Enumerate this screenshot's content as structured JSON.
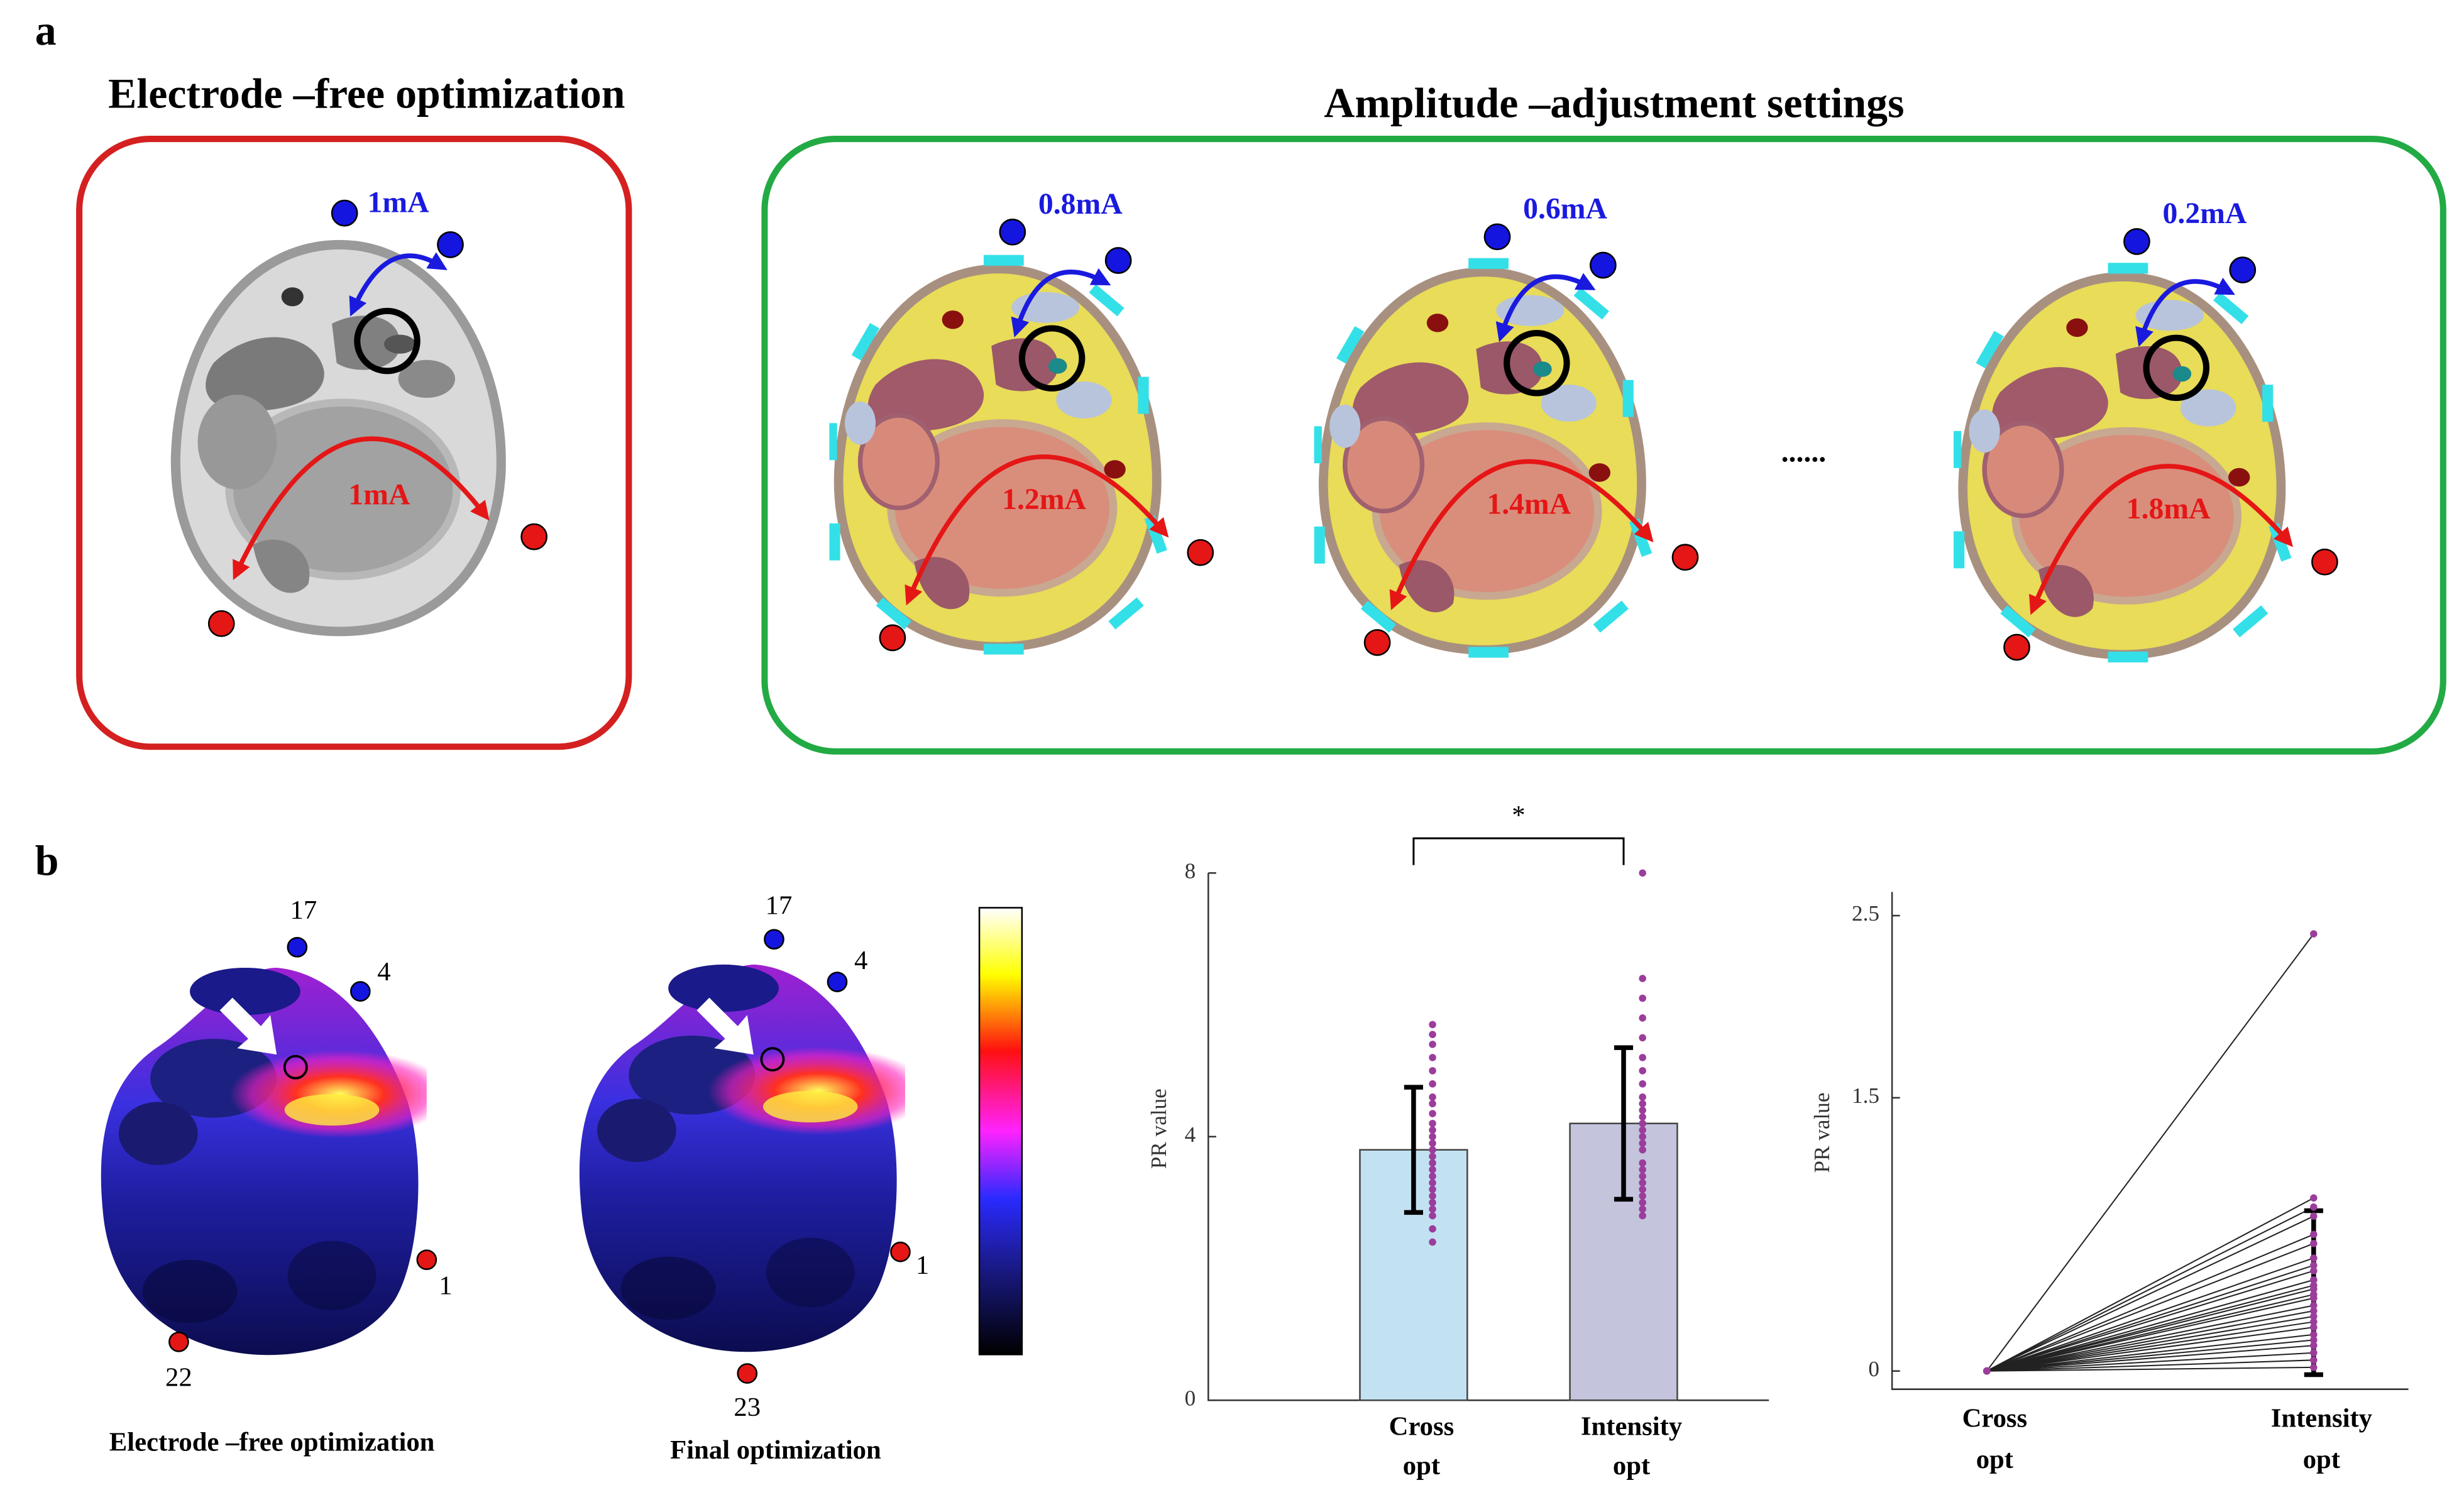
{
  "panel_a": {
    "label": "a",
    "left_title": "Electrode –free optimization",
    "right_title": "Amplitude –adjustment settings",
    "left": {
      "blue_current": "1mA",
      "red_current": "1mA"
    },
    "settings": [
      {
        "blue_current": "0.8mA",
        "red_current": "1.2mA"
      },
      {
        "blue_current": "0.6mA",
        "red_current": "1.4mA"
      },
      {
        "blue_current": "0.2mA",
        "red_current": "1.8mA"
      }
    ],
    "ellipsis": "......"
  },
  "panel_b": {
    "label": "b",
    "maps": [
      {
        "caption": "Electrode –free optimization",
        "electrodes": [
          "17",
          "4",
          "1",
          "22"
        ]
      },
      {
        "caption": "Final optimization",
        "electrodes": [
          "17",
          "4",
          "1",
          "23"
        ]
      }
    ]
  },
  "chart_data": [
    {
      "type": "bar",
      "ylabel": "PR value",
      "categories": [
        [
          "Cross",
          "opt"
        ],
        [
          "Intensity",
          "opt"
        ]
      ],
      "values": [
        3.8,
        4.2
      ],
      "errors": [
        0.95,
        1.15
      ],
      "points": [
        [
          5.7,
          5.55,
          5.4,
          5.2,
          5.0,
          4.8,
          4.6,
          4.5,
          4.35,
          4.2,
          4.1,
          4.0,
          3.9,
          3.8,
          3.7,
          3.6,
          3.5,
          3.4,
          3.3,
          3.2,
          3.1,
          3.0,
          2.9,
          2.8,
          2.6,
          2.4
        ],
        [
          8.0,
          6.4,
          6.1,
          5.8,
          5.5,
          5.2,
          5.0,
          4.8,
          4.6,
          4.5,
          4.4,
          4.3,
          4.2,
          4.1,
          4.0,
          3.9,
          3.8,
          3.6,
          3.5,
          3.4,
          3.3,
          3.2,
          3.1,
          3.0,
          2.9,
          2.8
        ]
      ],
      "colors": [
        "#c2e2f2",
        "#c4c4dd"
      ],
      "point_color": "#9b3d9b",
      "ylim": [
        0,
        8
      ],
      "yticks": [
        0,
        4,
        8
      ],
      "annotation": "*"
    },
    {
      "type": "line",
      "ylabel": "PR value",
      "categories": [
        [
          "Cross",
          "opt"
        ],
        [
          "Intensity",
          "opt"
        ]
      ],
      "pairs": [
        [
          0,
          2.4
        ],
        [
          0,
          0.95
        ],
        [
          0,
          0.9
        ],
        [
          0,
          0.85
        ],
        [
          0,
          0.75
        ],
        [
          0,
          0.7
        ],
        [
          0,
          0.62
        ],
        [
          0,
          0.58
        ],
        [
          0,
          0.55
        ],
        [
          0,
          0.5
        ],
        [
          0,
          0.47
        ],
        [
          0,
          0.45
        ],
        [
          0,
          0.42
        ],
        [
          0,
          0.4
        ],
        [
          0,
          0.36
        ],
        [
          0,
          0.33
        ],
        [
          0,
          0.3
        ],
        [
          0,
          0.27
        ],
        [
          0,
          0.24
        ],
        [
          0,
          0.2
        ],
        [
          0,
          0.17
        ],
        [
          0,
          0.14
        ],
        [
          0,
          0.1
        ],
        [
          0,
          0.06
        ],
        [
          0,
          0.02
        ]
      ],
      "mean": 0.43,
      "error": 0.45,
      "point_color": "#9b3d9b",
      "ylim": [
        -0.1,
        2.63
      ],
      "yticks": [
        0,
        1.5,
        2.5
      ]
    }
  ]
}
